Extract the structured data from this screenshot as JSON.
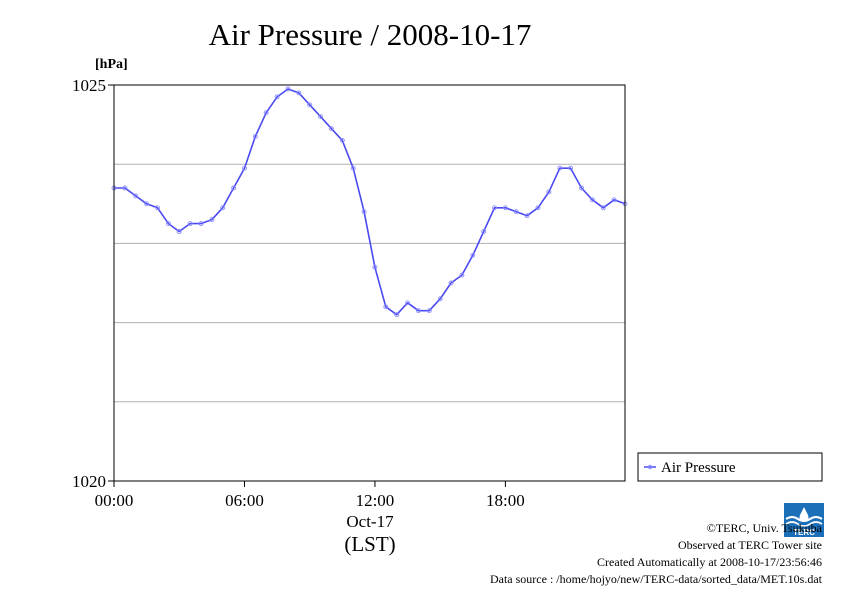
{
  "chart_data": {
    "type": "line",
    "title": "Air Pressure / 2008-10-17",
    "ylabel": "[hPa]",
    "xlabel": "(LST)",
    "xdate": "Oct-17",
    "x_range_hours": [
      0,
      23.5
    ],
    "ylim": [
      1020,
      1025
    ],
    "ytick_labels": [
      "1025",
      "1020"
    ],
    "ygrid": [
      1021,
      1022,
      1023,
      1024
    ],
    "xtick_labels": [
      {
        "hour": 0,
        "label": "00:00"
      },
      {
        "hour": 6,
        "label": "06:00"
      },
      {
        "hour": 12,
        "label": "12:00"
      },
      {
        "hour": 18,
        "label": "18:00"
      }
    ],
    "grid": true,
    "legend_position": "right",
    "series": [
      {
        "name": "Air Pressure",
        "color": "#4a4af0",
        "marker_color": "#8a8aff",
        "points": [
          [
            0.0,
            1023.7
          ],
          [
            0.5,
            1023.7
          ],
          [
            1.0,
            1023.6
          ],
          [
            1.5,
            1023.5
          ],
          [
            2.0,
            1023.45
          ],
          [
            2.5,
            1023.25
          ],
          [
            3.0,
            1023.15
          ],
          [
            3.5,
            1023.25
          ],
          [
            4.0,
            1023.25
          ],
          [
            4.5,
            1023.3
          ],
          [
            5.0,
            1023.45
          ],
          [
            5.5,
            1023.7
          ],
          [
            6.0,
            1023.95
          ],
          [
            6.5,
            1024.35
          ],
          [
            7.0,
            1024.65
          ],
          [
            7.5,
            1024.85
          ],
          [
            8.0,
            1024.95
          ],
          [
            8.5,
            1024.9
          ],
          [
            9.0,
            1024.75
          ],
          [
            9.5,
            1024.6
          ],
          [
            10.0,
            1024.45
          ],
          [
            10.5,
            1024.3
          ],
          [
            11.0,
            1023.95
          ],
          [
            11.5,
            1023.4
          ],
          [
            12.0,
            1022.7
          ],
          [
            12.5,
            1022.2
          ],
          [
            13.0,
            1022.1
          ],
          [
            13.5,
            1022.25
          ],
          [
            14.0,
            1022.15
          ],
          [
            14.5,
            1022.15
          ],
          [
            15.0,
            1022.3
          ],
          [
            15.5,
            1022.5
          ],
          [
            16.0,
            1022.6
          ],
          [
            16.5,
            1022.85
          ],
          [
            17.0,
            1023.15
          ],
          [
            17.5,
            1023.45
          ],
          [
            18.0,
            1023.45
          ],
          [
            18.5,
            1023.4
          ],
          [
            19.0,
            1023.35
          ],
          [
            19.5,
            1023.45
          ],
          [
            20.0,
            1023.65
          ],
          [
            20.5,
            1023.95
          ],
          [
            21.0,
            1023.95
          ],
          [
            21.5,
            1023.7
          ],
          [
            22.0,
            1023.55
          ],
          [
            22.5,
            1023.45
          ],
          [
            23.0,
            1023.55
          ],
          [
            23.5,
            1023.5
          ]
        ]
      }
    ]
  },
  "legend": {
    "label": "Air Pressure"
  },
  "footer": {
    "copyright": "©TERC, Univ. Tsukuba",
    "observed": "Observed at TERC Tower site",
    "created": "Created Automatically at 2008-10-17/23:56:46",
    "source": "Data source : /home/hojyo/new/TERC-data/sorted_data/MET.10s.dat"
  },
  "logo": {
    "text": "TERC",
    "color": "#1a6fb8"
  }
}
